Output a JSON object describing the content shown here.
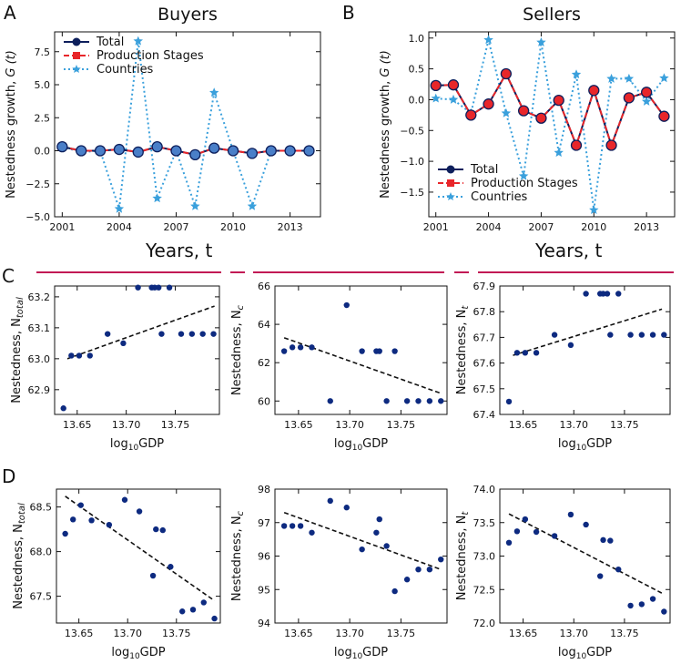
{
  "panel_letters": [
    "A",
    "B",
    "C",
    "D"
  ],
  "bottom_axis_labels": [
    "Years, t",
    "Years, t"
  ],
  "colors": {
    "total": "#0d1f5c",
    "production": "#e8262a",
    "countries": "#3aa0dc",
    "total_fill": "#4a7fc8",
    "scatter": "#0d2a80",
    "fit": "#111111",
    "separator": "#c21a55"
  },
  "chart_data": [
    {
      "id": "A",
      "type": "line",
      "title": "Buyers",
      "ylabel": "Nestedness growth, G (t)",
      "xlabel": "",
      "xlim": [
        2000.6,
        2014.6
      ],
      "ylim": [
        -5.0,
        9.0
      ],
      "xticks": [
        2001,
        2004,
        2007,
        2010,
        2013
      ],
      "yticks": [
        -5.0,
        -2.5,
        0.0,
        2.5,
        5.0,
        7.5
      ],
      "ytick_labels": [
        "−5.0",
        "−2.5",
        "0.0",
        "2.5",
        "5.0",
        "7.5"
      ],
      "legend": "top-left",
      "x": [
        2001,
        2002,
        2003,
        2004,
        2005,
        2006,
        2007,
        2008,
        2009,
        2010,
        2011,
        2012,
        2013,
        2014
      ],
      "series": [
        {
          "name": "Total",
          "key": "total",
          "values": [
            0.3,
            0.0,
            0.0,
            0.1,
            -0.1,
            0.3,
            0.0,
            -0.3,
            0.2,
            0.0,
            -0.2,
            0.0,
            0.0,
            0.0
          ]
        },
        {
          "name": "Production Stages",
          "key": "production",
          "values": [
            0.3,
            0.0,
            0.0,
            0.1,
            -0.1,
            0.3,
            0.0,
            -0.3,
            0.2,
            0.0,
            -0.2,
            0.0,
            0.0,
            0.0
          ]
        },
        {
          "name": "Countries",
          "key": "countries",
          "values": [
            0.3,
            -0.1,
            0.0,
            -4.4,
            8.3,
            -3.6,
            0.0,
            -4.2,
            4.4,
            0.0,
            -4.2,
            0.0,
            0.0,
            0.0
          ]
        }
      ]
    },
    {
      "id": "B",
      "type": "line",
      "title": "Sellers",
      "ylabel": "Nestedness growth, G (t)",
      "xlabel": "",
      "xlim": [
        2000.6,
        2014.6
      ],
      "ylim": [
        -1.9,
        1.1
      ],
      "xticks": [
        2001,
        2004,
        2007,
        2010,
        2013
      ],
      "yticks": [
        -1.5,
        -1.0,
        -0.5,
        0.0,
        0.5,
        1.0
      ],
      "ytick_labels": [
        "−1.5",
        "−1.0",
        "−0.5",
        "0.0",
        "0.5",
        "1.0"
      ],
      "legend": "bottom-left",
      "x": [
        2001,
        2002,
        2003,
        2004,
        2005,
        2006,
        2007,
        2008,
        2009,
        2010,
        2011,
        2012,
        2013,
        2014
      ],
      "series": [
        {
          "name": "Total",
          "key": "total",
          "values": [
            0.23,
            0.24,
            -0.25,
            -0.07,
            0.42,
            -0.18,
            -0.3,
            -0.01,
            -0.74,
            0.15,
            -0.74,
            0.03,
            0.12,
            -0.27
          ]
        },
        {
          "name": "Production Stages",
          "key": "production",
          "values": [
            0.23,
            0.24,
            -0.25,
            -0.07,
            0.42,
            -0.18,
            -0.3,
            -0.01,
            -0.74,
            0.15,
            -0.74,
            0.03,
            0.12,
            -0.27
          ]
        },
        {
          "name": "Countries",
          "key": "countries",
          "values": [
            0.02,
            0.0,
            -0.22,
            0.97,
            -0.22,
            -1.24,
            0.93,
            -0.86,
            0.41,
            -1.79,
            0.34,
            0.34,
            -0.03,
            0.35
          ]
        }
      ]
    },
    {
      "id": "C1",
      "type": "scatter",
      "xlabel": "log10GDP",
      "ylabel": "Nestedness, N_total",
      "ysub": "total",
      "xlim": [
        13.627,
        13.795
      ],
      "ylim": [
        62.82,
        63.235
      ],
      "xticks": [
        13.65,
        13.7,
        13.75
      ],
      "xtick_labels": [
        "13.65",
        "13.70",
        "13.75"
      ],
      "yticks": [
        62.9,
        63.0,
        63.1,
        63.2
      ],
      "ytick_labels": [
        "62.9",
        "63.0",
        "63.1",
        "63.2"
      ],
      "x": [
        13.636,
        13.644,
        13.652,
        13.663,
        13.681,
        13.697,
        13.712,
        13.726,
        13.729,
        13.733,
        13.736,
        13.744,
        13.756,
        13.767,
        13.778,
        13.789
      ],
      "y": [
        62.84,
        63.01,
        63.01,
        63.01,
        63.08,
        63.05,
        63.23,
        63.23,
        63.23,
        63.23,
        63.08,
        63.23,
        63.08,
        63.08,
        63.08,
        63.08
      ],
      "fit": {
        "x": [
          13.64,
          13.79
        ],
        "y": [
          63.0,
          63.17
        ]
      }
    },
    {
      "id": "C2",
      "type": "scatter",
      "xlabel": "log10GDP",
      "ylabel": "Nestedness, N_c",
      "ysub": "c",
      "xlim": [
        13.627,
        13.795
      ],
      "ylim": [
        59.3,
        66.0
      ],
      "xticks": [
        13.65,
        13.7,
        13.75
      ],
      "xtick_labels": [
        "13.65",
        "13.70",
        "13.75"
      ],
      "yticks": [
        60,
        62,
        64,
        66
      ],
      "ytick_labels": [
        "60",
        "62",
        "64",
        "66"
      ],
      "x": [
        13.636,
        13.644,
        13.652,
        13.663,
        13.681,
        13.697,
        13.712,
        13.726,
        13.729,
        13.736,
        13.744,
        13.756,
        13.767,
        13.778,
        13.789
      ],
      "y": [
        62.6,
        62.8,
        62.8,
        62.8,
        60.0,
        65.0,
        62.6,
        62.6,
        62.6,
        60.0,
        62.6,
        60.0,
        60.0,
        60.0,
        60.0
      ],
      "fit": {
        "x": [
          13.636,
          13.789
        ],
        "y": [
          63.3,
          60.4
        ]
      }
    },
    {
      "id": "C3",
      "type": "scatter",
      "xlabel": "log10GDP",
      "ylabel": "Nestedness, N_t",
      "ysub": "t",
      "xlim": [
        13.627,
        13.795
      ],
      "ylim": [
        67.4,
        67.9
      ],
      "xticks": [
        13.65,
        13.7,
        13.75
      ],
      "xtick_labels": [
        "13.65",
        "13.70",
        "13.75"
      ],
      "yticks": [
        67.4,
        67.5,
        67.6,
        67.7,
        67.8,
        67.9
      ],
      "ytick_labels": [
        "67.4",
        "67.5",
        "67.6",
        "67.7",
        "67.8",
        "67.9"
      ],
      "x": [
        13.636,
        13.644,
        13.652,
        13.663,
        13.681,
        13.697,
        13.712,
        13.726,
        13.729,
        13.733,
        13.736,
        13.744,
        13.756,
        13.767,
        13.778,
        13.789
      ],
      "y": [
        67.45,
        67.64,
        67.64,
        67.64,
        67.71,
        67.67,
        67.87,
        67.87,
        67.87,
        67.87,
        67.71,
        67.87,
        67.71,
        67.71,
        67.71,
        67.71
      ],
      "fit": {
        "x": [
          13.64,
          13.787
        ],
        "y": [
          67.63,
          67.81
        ]
      }
    },
    {
      "id": "D1",
      "type": "scatter",
      "xlabel": "log10GDP",
      "ylabel": "Nestedness, N_total",
      "ysub": "total",
      "xlim": [
        13.627,
        13.795
      ],
      "ylim": [
        67.2,
        68.7
      ],
      "xticks": [
        13.65,
        13.7,
        13.75
      ],
      "xtick_labels": [
        "13.65",
        "13.70",
        "13.75"
      ],
      "yticks": [
        67.5,
        68.0,
        68.5
      ],
      "ytick_labels": [
        "67.5",
        "68.0",
        "68.5"
      ],
      "x": [
        13.636,
        13.644,
        13.652,
        13.663,
        13.681,
        13.697,
        13.712,
        13.726,
        13.729,
        13.736,
        13.744,
        13.756,
        13.767,
        13.778,
        13.789
      ],
      "y": [
        68.2,
        68.36,
        68.52,
        68.35,
        68.3,
        68.58,
        68.45,
        67.73,
        68.25,
        68.24,
        67.83,
        67.33,
        67.35,
        67.43,
        67.25
      ],
      "fit": {
        "x": [
          13.636,
          13.789
        ],
        "y": [
          68.62,
          67.45
        ]
      }
    },
    {
      "id": "D2",
      "type": "scatter",
      "xlabel": "log10GDP",
      "ylabel": "Nestedness, N_c",
      "ysub": "c",
      "xlim": [
        13.627,
        13.795
      ],
      "ylim": [
        94.0,
        98.0
      ],
      "xticks": [
        13.65,
        13.7,
        13.75
      ],
      "xtick_labels": [
        "13.65",
        "13.70",
        "13.75"
      ],
      "yticks": [
        94,
        95,
        96,
        97,
        98
      ],
      "ytick_labels": [
        "94",
        "95",
        "96",
        "97",
        "98"
      ],
      "x": [
        13.636,
        13.644,
        13.652,
        13.663,
        13.681,
        13.697,
        13.712,
        13.726,
        13.729,
        13.736,
        13.744,
        13.756,
        13.767,
        13.778,
        13.789
      ],
      "y": [
        96.9,
        96.9,
        96.9,
        96.7,
        97.65,
        97.45,
        96.2,
        96.7,
        97.1,
        96.3,
        94.95,
        95.3,
        95.6,
        95.6,
        95.9
      ],
      "fit": {
        "x": [
          13.636,
          13.789
        ],
        "y": [
          97.3,
          95.6
        ]
      }
    },
    {
      "id": "D3",
      "type": "scatter",
      "xlabel": "log10GDP",
      "ylabel": "Nestedness, N_t",
      "ysub": "t",
      "xlim": [
        13.627,
        13.795
      ],
      "ylim": [
        72.0,
        74.0
      ],
      "xticks": [
        13.65,
        13.7,
        13.75
      ],
      "xtick_labels": [
        "13.65",
        "13.70",
        "13.75"
      ],
      "yticks": [
        72.0,
        72.5,
        73.0,
        73.5,
        74.0
      ],
      "ytick_labels": [
        "72.0",
        "72.5",
        "73.0",
        "73.5",
        "74.0"
      ],
      "x": [
        13.636,
        13.644,
        13.652,
        13.663,
        13.681,
        13.697,
        13.712,
        13.726,
        13.729,
        13.736,
        13.744,
        13.756,
        13.767,
        13.778,
        13.789
      ],
      "y": [
        73.2,
        73.37,
        73.55,
        73.36,
        73.3,
        73.62,
        73.47,
        72.7,
        73.24,
        73.23,
        72.8,
        72.26,
        72.28,
        72.36,
        72.17
      ],
      "fit": {
        "x": [
          13.636,
          13.789
        ],
        "y": [
          73.63,
          72.43
        ]
      }
    }
  ]
}
